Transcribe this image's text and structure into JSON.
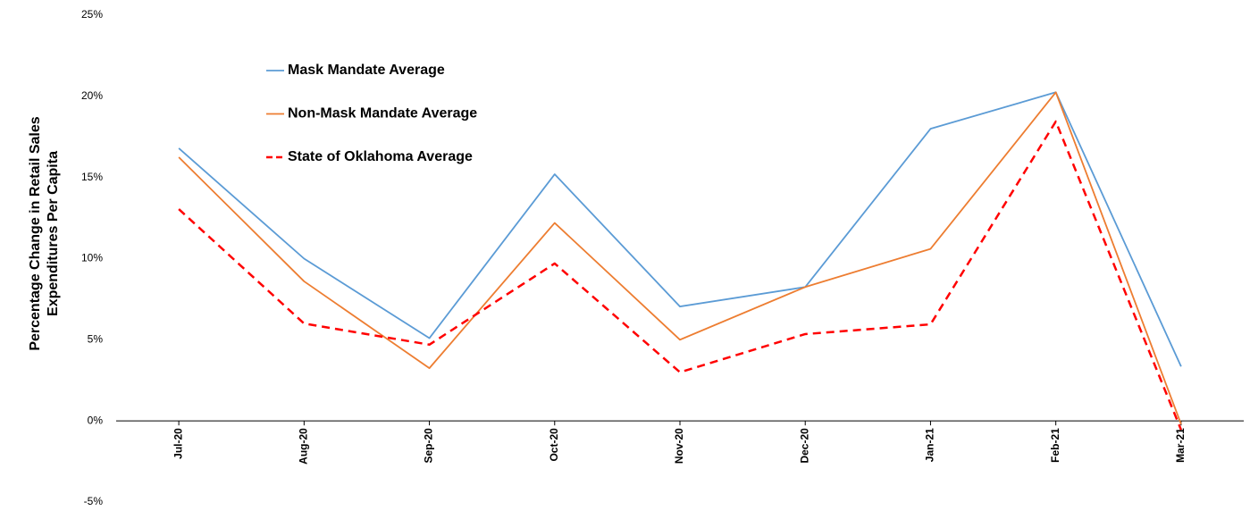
{
  "chart_data": {
    "type": "line",
    "ylabel": [
      "Percentage Change in Retail Sales",
      "Expenditures Per Capita"
    ],
    "categories": [
      "Jul-20",
      "Aug-20",
      "Sep-20",
      "Oct-20",
      "Nov-20",
      "Dec-20",
      "Jan-21",
      "Feb-21",
      "Mar-21"
    ],
    "series": [
      {
        "name": "Mask Mandate Average",
        "color": "#5b9bd5",
        "linestyle": "solid",
        "values": [
          16.8,
          10.0,
          5.1,
          15.2,
          7.05,
          8.25,
          18.0,
          20.25,
          3.35
        ]
      },
      {
        "name": "Non-Mask Mandate Average",
        "color": "#ed7d31",
        "linestyle": "solid",
        "values": [
          16.25,
          8.6,
          3.25,
          12.2,
          5.0,
          8.25,
          10.6,
          20.25,
          -0.2
        ]
      },
      {
        "name": "State of Oklahoma Average",
        "color": "#ff0000",
        "linestyle": "dashed",
        "values": [
          13.05,
          6.0,
          4.7,
          9.7,
          3.0,
          5.35,
          5.95,
          18.45,
          -0.55
        ]
      }
    ],
    "ylim": [
      -5,
      25
    ],
    "yticks": [
      {
        "value": -5,
        "label": "-5%"
      },
      {
        "value": 0,
        "label": "0%"
      },
      {
        "value": 5,
        "label": "5%"
      },
      {
        "value": 10,
        "label": "10%"
      },
      {
        "value": 15,
        "label": "15%"
      },
      {
        "value": 20,
        "label": "20%"
      },
      {
        "value": 25,
        "label": "25%"
      }
    ],
    "grid": false,
    "legend": "upper left"
  }
}
